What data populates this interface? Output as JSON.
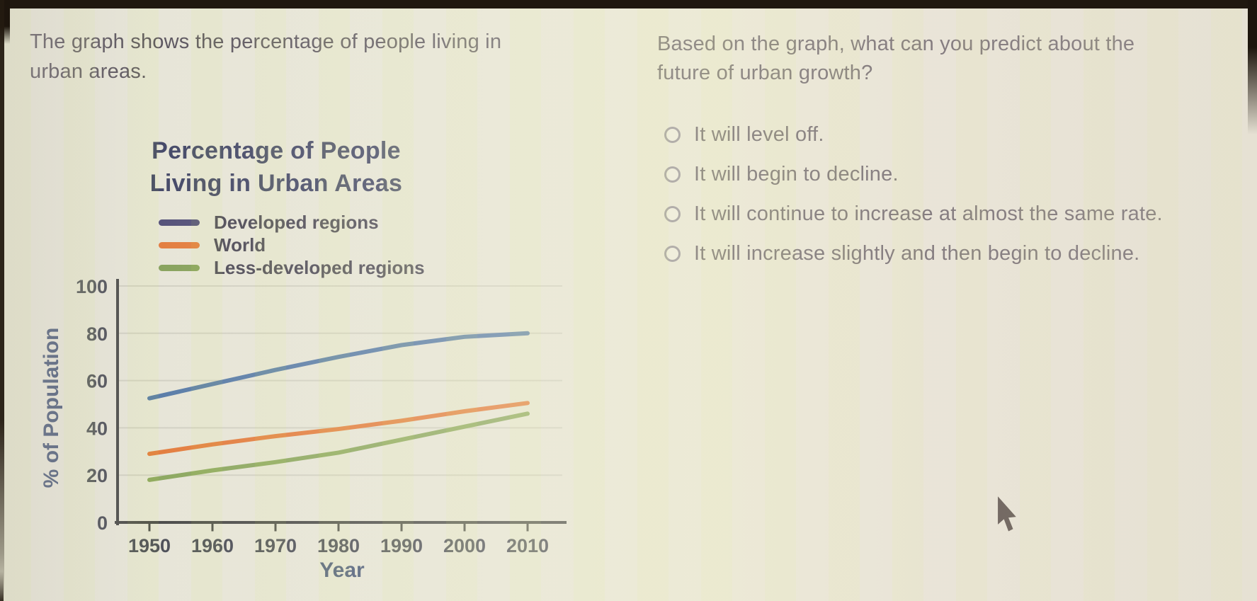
{
  "prompt": {
    "line1": "The graph shows the percentage of people living in",
    "line2": "urban areas."
  },
  "question": {
    "line1": "Based on the graph, what can you predict about the",
    "line2": "future of urban growth?",
    "options": [
      {
        "label": "It will level off.",
        "selected": false
      },
      {
        "label": "It will begin to decline.",
        "selected": false
      },
      {
        "label": "It will continue to increase at almost the same rate.",
        "selected": false
      },
      {
        "label": "It will increase slightly and then begin to decline.",
        "selected": false
      }
    ]
  },
  "chart_data": {
    "type": "line",
    "title": [
      "Percentage of People",
      "Living in Urban Areas"
    ],
    "xlabel": "Year",
    "ylabel": "% of Population",
    "x": [
      1950,
      1960,
      1970,
      1980,
      1990,
      2000,
      2010
    ],
    "ylim": [
      0,
      100
    ],
    "yticks": [
      0,
      20,
      40,
      60,
      80,
      100
    ],
    "grid": true,
    "legend_position": "above-plot-left",
    "series": [
      {
        "name": "Developed regions",
        "values": [
          52.5,
          58.5,
          64.5,
          70,
          75,
          78.5,
          80
        ],
        "line_color": "#4a70a2",
        "legend_color": "#44406e"
      },
      {
        "name": "World",
        "values": [
          29,
          33,
          36.5,
          39.5,
          43,
          47,
          50.5
        ],
        "line_color": "#e2712e",
        "legend_color": "#e2712e"
      },
      {
        "name": "Less-developed regions",
        "values": [
          18,
          22,
          25.5,
          29.5,
          35,
          40.5,
          46
        ],
        "line_color": "#82a052",
        "legend_color": "#7d9a4f"
      }
    ]
  },
  "colors": {
    "body_text": "#4b4450",
    "title_text": "#32365a",
    "axis_text": "#3a4a6e",
    "background": "#e6e4d7"
  }
}
